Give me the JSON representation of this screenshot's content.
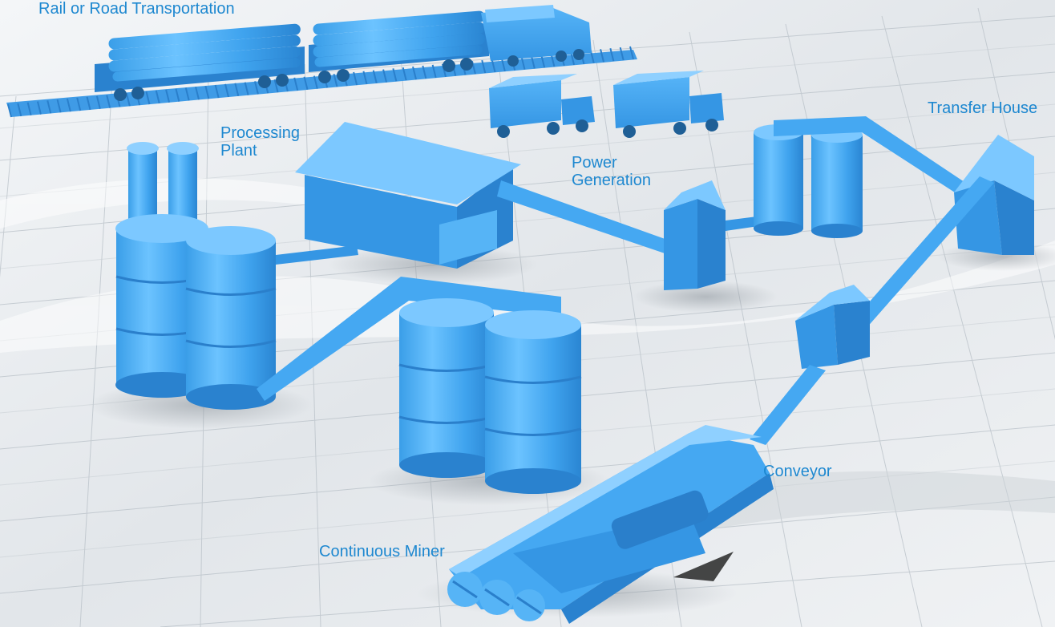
{
  "colors": {
    "label": "#1e88d0",
    "equipment": "#45a8f2",
    "equipment_light": "#8fd0ff",
    "equipment_dark": "#2a7fcb",
    "grid_line": "#b9c1c8",
    "background": "#e9edf0"
  },
  "labels": {
    "rail_road": "Rail or Road Transportation",
    "processing_plant": "Processing\nPlant",
    "power_generation": "Power\nGeneration",
    "transfer_house": "Transfer House",
    "conveyor": "Conveyor",
    "continuous_miner": "Continuous Miner"
  }
}
